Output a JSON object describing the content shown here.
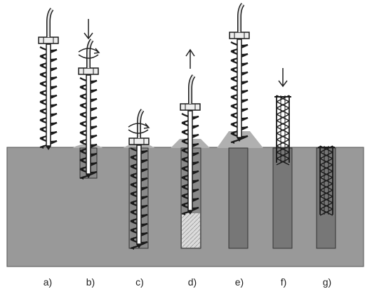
{
  "stages": [
    {
      "id": "a",
      "label": "a)"
    },
    {
      "id": "b",
      "label": "b)"
    },
    {
      "id": "c",
      "label": "c)"
    },
    {
      "id": "d",
      "label": "d)"
    },
    {
      "id": "e",
      "label": "e)"
    },
    {
      "id": "f",
      "label": "f)"
    },
    {
      "id": "g",
      "label": "g)"
    }
  ],
  "colors": {
    "ground": "#999999",
    "ground_edge": "#555555",
    "borehole": "#8a8a8a",
    "concrete": "#777777",
    "spoil": "#b0b0b0",
    "auger": "#1a1a1a",
    "cable": "#e8e8e8"
  },
  "icons": {
    "down": "down-arrow-icon",
    "up": "up-arrow-icon",
    "rotate": "rotation-arrow-icon"
  }
}
